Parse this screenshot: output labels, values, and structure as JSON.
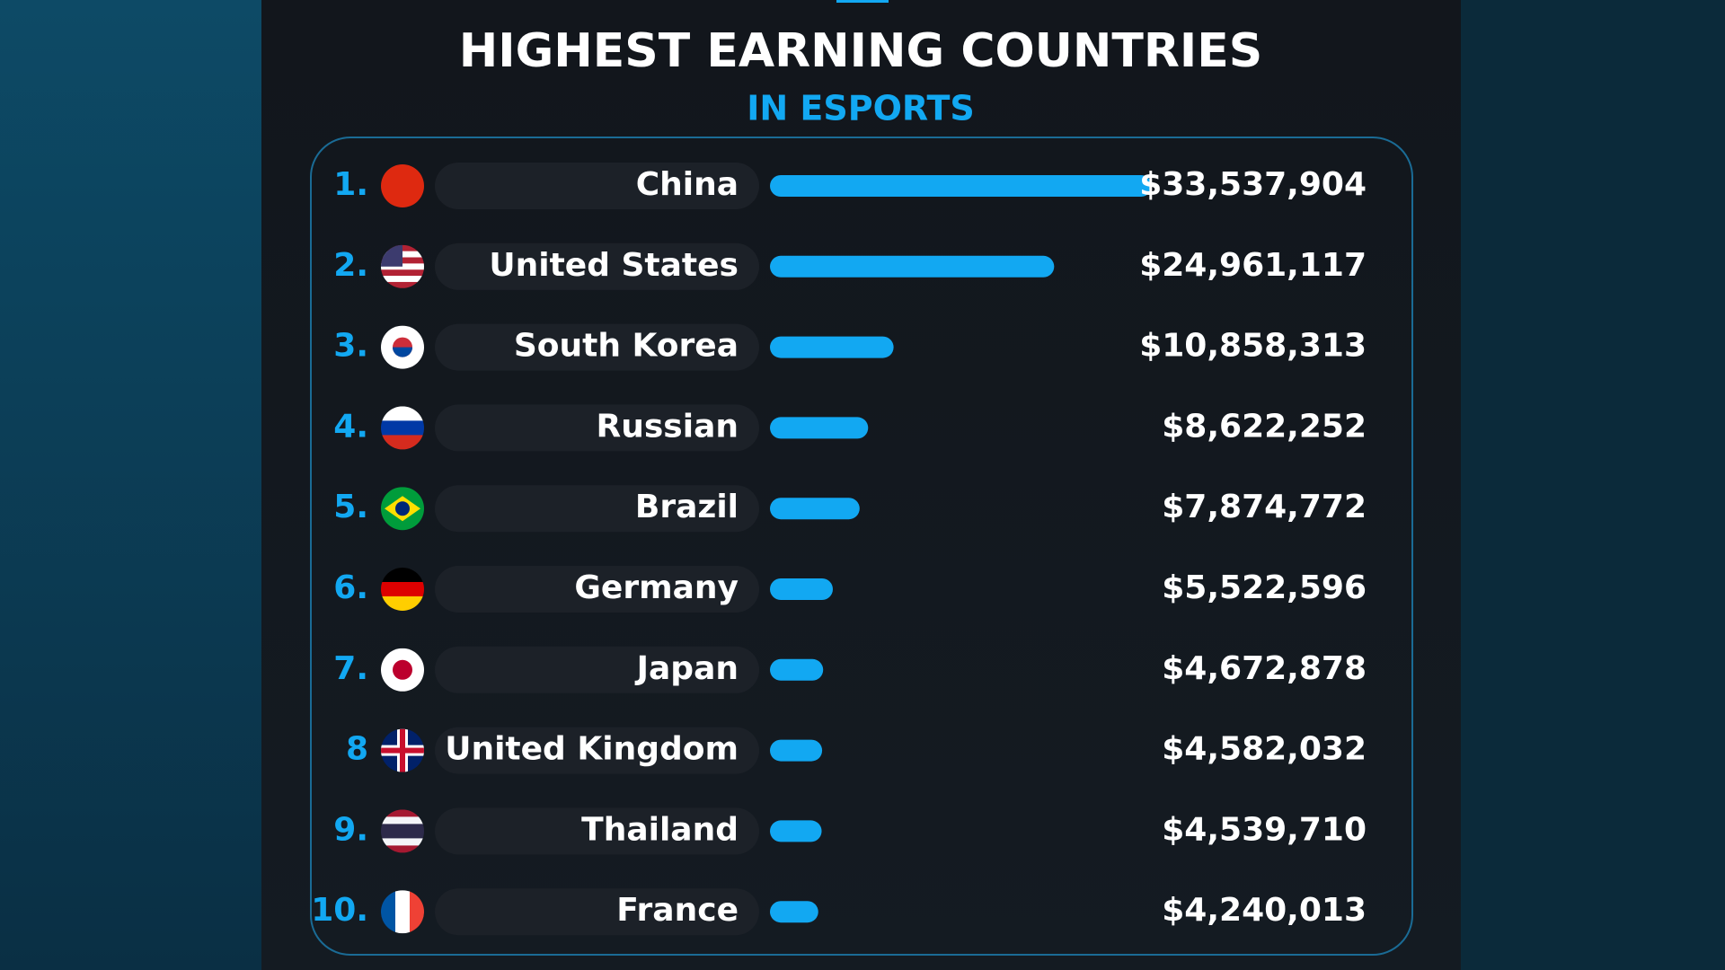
{
  "chart_data": {
    "type": "bar",
    "orientation": "horizontal",
    "title": "HIGHEST EARNING COUNTRIES",
    "subtitle": "IN ESPORTS",
    "ranks": [
      "1.",
      "2.",
      "3.",
      "4.",
      "5.",
      "6.",
      "7.",
      "8",
      "9.",
      "10."
    ],
    "categories": [
      "China",
      "United States",
      "South Korea",
      "Russian",
      "Brazil",
      "Germany",
      "Japan",
      "United Kingdom",
      "Thailand",
      "France"
    ],
    "values": [
      33537904,
      24961117,
      10858313,
      8622252,
      7874772,
      5522596,
      4672878,
      4582032,
      4539710,
      4240013
    ],
    "value_labels": [
      "$33,537,904",
      "$24,961,117",
      "$10,858,313",
      "$8,622,252",
      "$7,874,772",
      "$5,522,596",
      "$4,672,878",
      "$4,582,032",
      "$4,539,710",
      "$4,240,013"
    ],
    "color": "#12a8f2"
  }
}
